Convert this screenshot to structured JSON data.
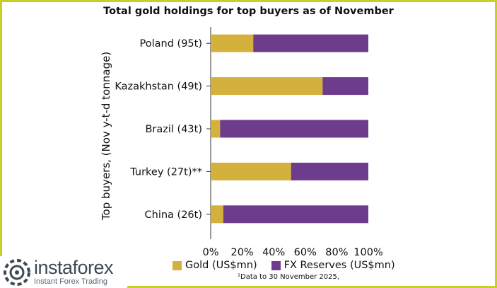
{
  "chart_data": {
    "type": "bar",
    "orientation": "horizontal",
    "stacked": true,
    "title": "Total gold holdings for top buyers as of November",
    "ylabel": "Top buyers, (Nov y-t-d tonnage)",
    "xlabel": "",
    "categories": [
      "Poland (95t)",
      "Kazakhstan (49t)",
      "Brazil (43t)",
      "Turkey (27t)**",
      "China (26t)"
    ],
    "series": [
      {
        "name": "Gold (US$mn)",
        "color": "#d4b03c",
        "values": [
          27,
          71,
          6,
          51,
          8
        ]
      },
      {
        "name": "FX Reserves (US$mn)",
        "color": "#6e3c8c",
        "values": [
          73,
          29,
          94,
          49,
          92
        ]
      }
    ],
    "xlim": [
      0,
      100
    ],
    "xticks": [
      "0%",
      "20%",
      "40%",
      "60%",
      "80%",
      "100%"
    ],
    "legend_position": "bottom",
    "footnote": "¹Data to 30 November 2025,"
  },
  "watermark": {
    "brand": "instaforex",
    "tagline": "Instant Forex Trading"
  }
}
